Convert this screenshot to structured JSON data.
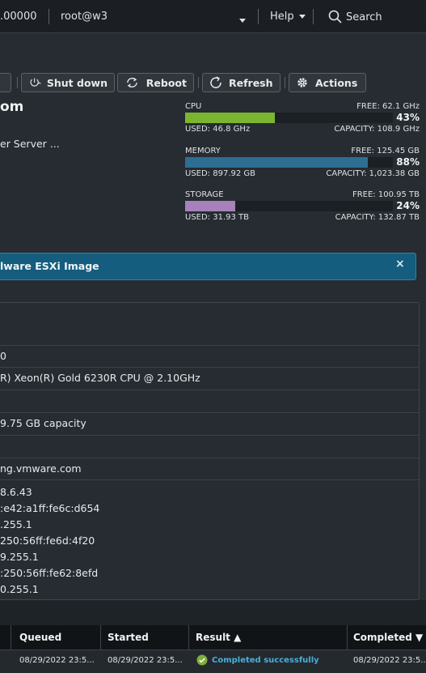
{
  "topbar": {
    "ip": ".00000",
    "user": "root@w3",
    "help": "Help",
    "search": "Search"
  },
  "toolbar": {
    "shutdown": "Shut down",
    "reboot": "Reboot",
    "refresh": "Refresh",
    "actions": "Actions"
  },
  "summary": {
    "name_fragment": "om",
    "model_fragment": "er Server ..."
  },
  "resources": {
    "cpu": {
      "label": "CPU",
      "free": "FREE: 62.1 GHz",
      "pct": "43%",
      "fraction": 0.43,
      "used": "USED: 46.8 GHz",
      "capacity": "CAPACITY: 108.9 GHz",
      "color": "#7bb630"
    },
    "memory": {
      "label": "MEMORY",
      "free": "FREE: 125.45 GB",
      "pct": "88%",
      "fraction": 0.88,
      "used": "USED: 897.92 GB",
      "capacity": "CAPACITY: 1,023.38 GB",
      "color": "#2f6d93"
    },
    "storage": {
      "label": "STORAGE",
      "free": "FREE: 100.95 TB",
      "pct": "24%",
      "fraction": 0.24,
      "used": "USED: 31.93 TB",
      "capacity": "CAPACITY: 132.87 TB",
      "color": "#a781bb"
    }
  },
  "banner": {
    "text": "lware ESXi Image"
  },
  "details": [
    "0",
    "R) Xeon(R) Gold 6230R CPU @ 2.10GHz",
    "",
    "9.75 GB capacity",
    "",
    "ng.vmware.com",
    "8.6.43",
    ":e42:a1ff:fe6c:d654",
    ".255.1",
    "250:56ff:fe6d:4f20",
    "9.255.1",
    ":250:56ff:fe62:8efd",
    "0.255.1"
  ],
  "tasks": {
    "headers": {
      "queued": "Queued",
      "started": "Started",
      "result": "Result ▲",
      "completed": "Completed ▼"
    },
    "row": {
      "queued": "08/29/2022 23:5...",
      "started": "08/29/2022 23:5...",
      "result": "Completed successfully",
      "completed": "08/29/2022 23:5..."
    }
  }
}
